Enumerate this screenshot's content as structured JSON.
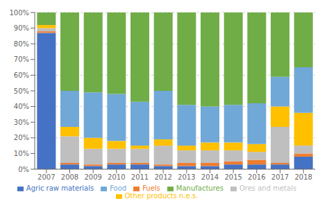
{
  "chart_data": {
    "type": "bar",
    "stacked": true,
    "grid": true,
    "legend": "bottom",
    "categories": [
      "2007",
      "2008",
      "2009",
      "2010",
      "2011",
      "2012",
      "2013",
      "2014",
      "2015",
      "2016",
      "2017",
      "2018"
    ],
    "series": [
      {
        "name": "Agric raw materials",
        "color": "#4472c4",
        "values": [
          87,
          3,
          2,
          3,
          3,
          2,
          2,
          2,
          3,
          3,
          3,
          8
        ]
      },
      {
        "name": "Fuels",
        "color": "#ed7d31",
        "values": [
          1,
          1,
          1,
          1,
          1,
          1,
          2,
          2,
          2,
          3,
          1,
          2
        ]
      },
      {
        "name": "Ores and metals",
        "color": "#bfbfbf",
        "values": [
          2,
          17,
          10,
          9,
          9,
          12,
          8,
          8,
          7,
          5,
          23,
          5
        ]
      },
      {
        "name": "Other products n.e.s.",
        "color": "#ffc000",
        "values": [
          2,
          6,
          7,
          5,
          2,
          4,
          3,
          5,
          5,
          5,
          13,
          21
        ]
      },
      {
        "name": "Food",
        "color": "#70a8d8",
        "values": [
          0,
          23,
          29,
          30,
          28,
          31,
          26,
          23,
          24,
          26,
          19,
          29
        ]
      },
      {
        "name": "Manufactures",
        "color": "#70ad47",
        "values": [
          8,
          50,
          51,
          52,
          57,
          50,
          59,
          60,
          59,
          58,
          41,
          35
        ]
      }
    ],
    "ylim": [
      0,
      100
    ],
    "yticks": [
      {
        "value": 0,
        "label": "0%"
      },
      {
        "value": 10,
        "label": "10%"
      },
      {
        "value": 20,
        "label": "20%"
      },
      {
        "value": 30,
        "label": "30%"
      },
      {
        "value": 40,
        "label": "40%"
      },
      {
        "value": 50,
        "label": "50%"
      },
      {
        "value": 60,
        "label": "60%"
      },
      {
        "value": 70,
        "label": "70%"
      },
      {
        "value": 80,
        "label": "80%"
      },
      {
        "value": 90,
        "label": "90%"
      },
      {
        "value": 100,
        "label": "100%"
      }
    ]
  }
}
